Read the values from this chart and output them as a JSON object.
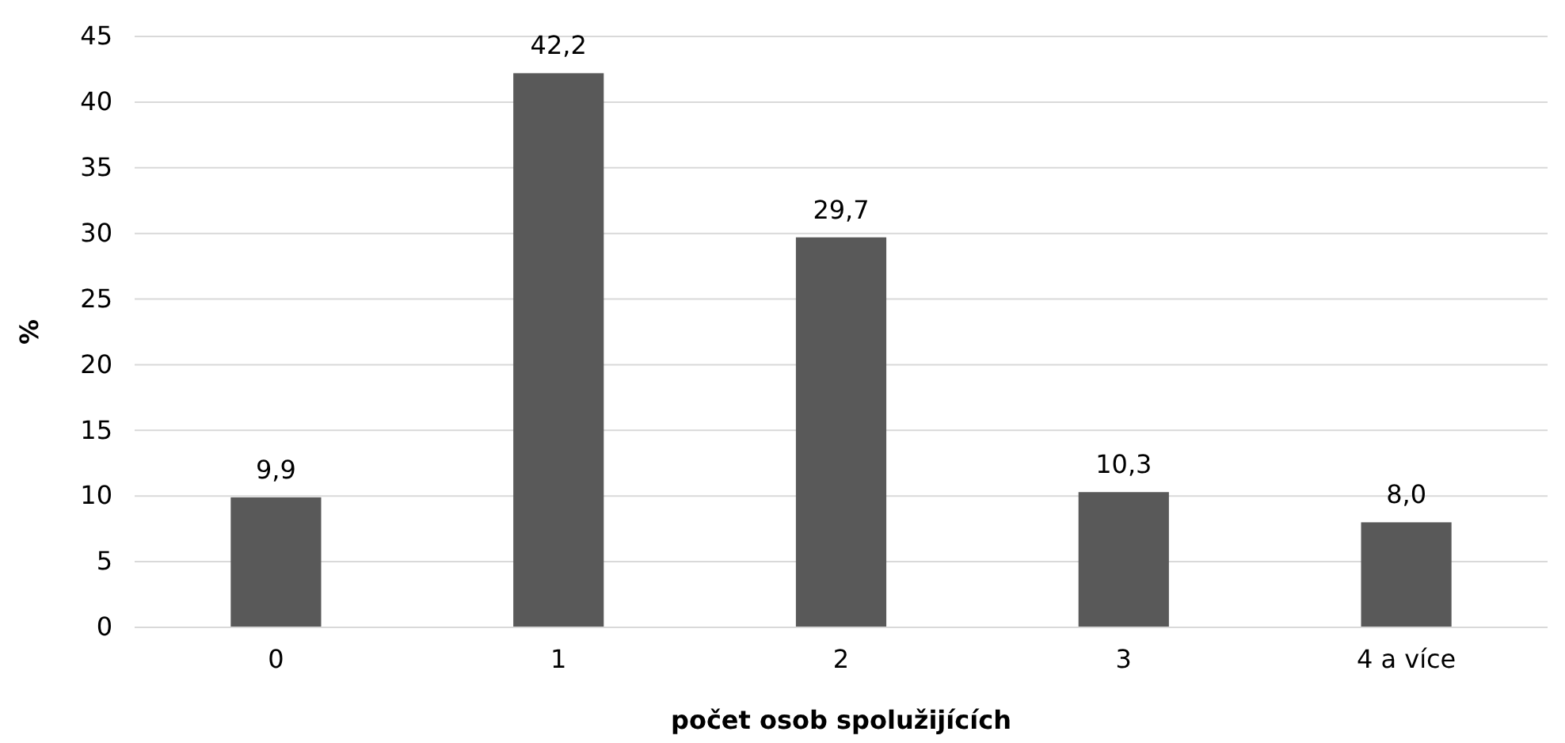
{
  "chart_data": {
    "type": "bar",
    "xlabel": "počet osob spolužijících",
    "ylabel": "%",
    "categories": [
      "0",
      "1",
      "2",
      "3",
      "4 a více"
    ],
    "values": [
      9.9,
      42.2,
      29.7,
      10.3,
      8.0
    ],
    "value_labels": [
      "9,9",
      "42,2",
      "29,7",
      "10,3",
      "8,0"
    ],
    "color": "#595959",
    "ylim": [
      0,
      45
    ],
    "yticks": [
      0,
      5,
      10,
      15,
      20,
      25,
      30,
      35,
      40,
      45
    ],
    "grid": "y"
  }
}
